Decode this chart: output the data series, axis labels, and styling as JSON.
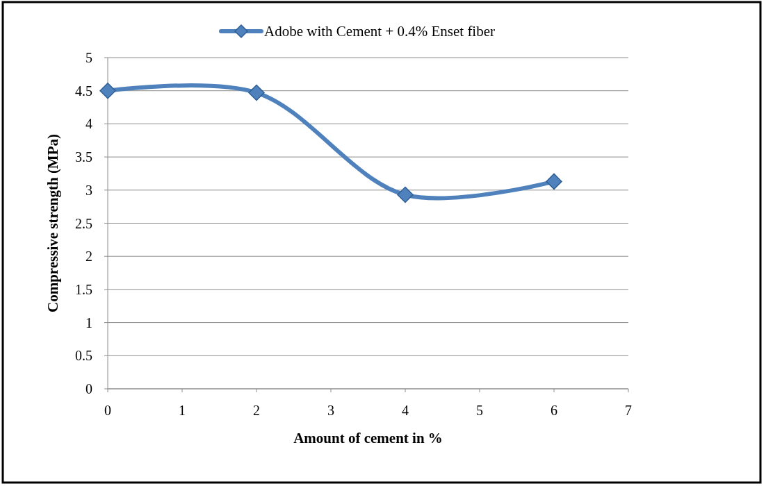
{
  "chart_data": {
    "type": "line",
    "xlabel": "Amount of cement in %",
    "ylabel": "Compressive strength (MPa)",
    "x": [
      0,
      2,
      4,
      6
    ],
    "series": [
      {
        "name": "Adobe with Cement + 0.4% Enset fiber",
        "color": "#4f81bd",
        "values": [
          4.5,
          4.47,
          2.93,
          3.13
        ]
      }
    ],
    "xlim": [
      0,
      7
    ],
    "xticks": [
      0,
      1,
      2,
      3,
      4,
      5,
      6,
      7
    ],
    "ylim": [
      0,
      5
    ],
    "yticks": [
      0,
      0.5,
      1,
      1.5,
      2,
      2.5,
      3,
      3.5,
      4,
      4.5,
      5
    ],
    "grid": "y",
    "legend": "top",
    "marker": "diamond",
    "line_style": "solid"
  }
}
